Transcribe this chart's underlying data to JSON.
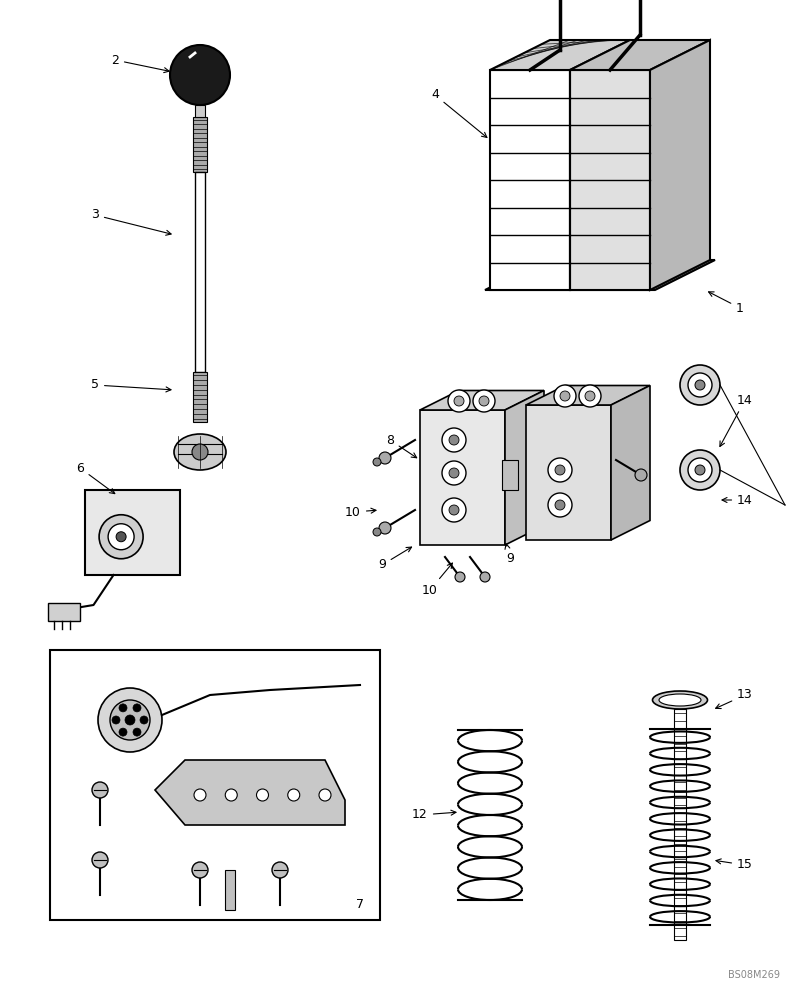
{
  "bg_color": "#ffffff",
  "lc": "#000000",
  "watermark": "BS08M269",
  "fig_w": 8.12,
  "fig_h": 10.0,
  "dpi": 100
}
